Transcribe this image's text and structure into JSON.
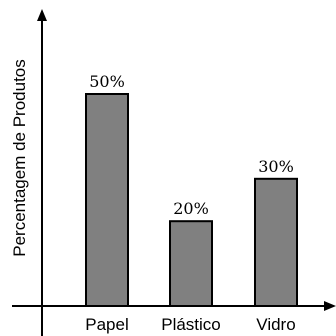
{
  "chart_data": {
    "type": "bar",
    "categories": [
      "Papel",
      "Plástico",
      "Vidro"
    ],
    "values": [
      50,
      20,
      30
    ],
    "value_labels": [
      "50%",
      "20%",
      "30%"
    ],
    "title": "",
    "xlabel": "",
    "ylabel": "Percentagem de Produtos",
    "ylim": [
      0,
      70
    ],
    "grid": false,
    "legend": "none",
    "bar_color": "#808080",
    "bar_outline_color": "#000000"
  }
}
